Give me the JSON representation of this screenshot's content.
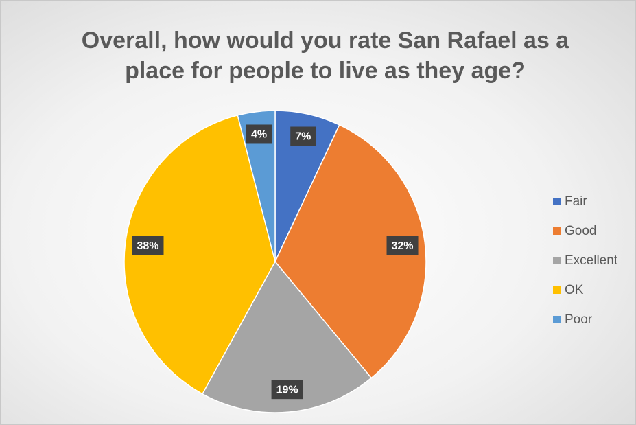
{
  "chart_data": {
    "type": "pie",
    "title": "Overall, how would you rate San Rafael as a place for people to live as they age?",
    "categories": [
      "Fair",
      "Good",
      "Excellent",
      "OK",
      "Poor"
    ],
    "values": [
      7,
      32,
      19,
      38,
      4
    ],
    "value_labels": [
      "7%",
      "32%",
      "19%",
      "38%",
      "4%"
    ],
    "colors": [
      "#4472c4",
      "#ed7d31",
      "#a5a5a5",
      "#ffc000",
      "#5b9bd5"
    ],
    "legend": "right"
  }
}
